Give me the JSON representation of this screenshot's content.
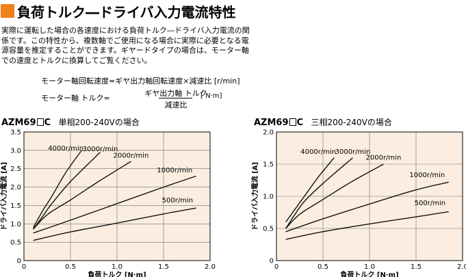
{
  "page": {
    "title": "負荷トルク―ドライバ入力電流特性",
    "description": "実際に運転した場合の各速度における負荷トルク―ドライバ入力電流の関係です。この特性から、複数軸でご使用になる場合に実際に必要となる電源容量を推定することができます。ギヤードタイプの場合は、モーター軸での速度とトルクに換算してご覧ください。",
    "formula1": "モーター軸回転速度=ギヤ出力軸回転速度×減速比 [r/min]",
    "formula2": {
      "label": "モーター軸 トルク=",
      "numerator": "ギヤ出力軸 トルク",
      "denominator": "減速比",
      "unit": "[ N·m]"
    },
    "accent_color": "#f07f1c",
    "plot_background": "#fbeee0"
  },
  "chart_data": [
    {
      "type": "line",
      "model_prefix": "AZM69",
      "model_suffix": "C",
      "title": "単相200-240Vの場合",
      "xlabel": "負荷トルク [N·m]",
      "ylabel": "ドライバ入力電流 [A]",
      "xlim": [
        0,
        2.0
      ],
      "ylim": [
        0,
        3.5
      ],
      "xticks": [
        "0",
        "0.5",
        "1.0",
        "1.5",
        "2.0"
      ],
      "xtick_values": [
        0,
        0.5,
        1.0,
        1.5,
        2.0
      ],
      "yticks": [
        "0",
        "0.5",
        "1.0",
        "1.5",
        "2.0",
        "2.5",
        "3.0",
        "3.5"
      ],
      "ytick_values": [
        0,
        0.5,
        1.0,
        1.5,
        2.0,
        2.5,
        3.0,
        3.5
      ],
      "grid": true,
      "series": [
        {
          "name": "4000r/min",
          "x": [
            0.1,
            0.2,
            0.3,
            0.45,
            0.62
          ],
          "y": [
            0.9,
            1.35,
            1.75,
            2.4,
            3.0
          ]
        },
        {
          "name": "3000r/min",
          "x": [
            0.1,
            0.2,
            0.3,
            0.5,
            0.82
          ],
          "y": [
            0.85,
            1.2,
            1.55,
            2.15,
            2.95
          ]
        },
        {
          "name": "2000r/min",
          "x": [
            0.1,
            0.25,
            0.5,
            0.8,
            1.15
          ],
          "y": [
            0.85,
            1.25,
            1.65,
            2.15,
            2.7
          ]
        },
        {
          "name": "1000r/min",
          "x": [
            0.1,
            0.5,
            1.0,
            1.5,
            1.85
          ],
          "y": [
            0.75,
            1.1,
            1.55,
            2.0,
            2.3
          ]
        },
        {
          "name": "500r/min",
          "x": [
            0.1,
            0.5,
            1.0,
            1.5,
            1.85
          ],
          "y": [
            0.55,
            0.78,
            1.02,
            1.27,
            1.43
          ]
        }
      ]
    },
    {
      "type": "line",
      "model_prefix": "AZM69",
      "model_suffix": "C",
      "title": "三相200-240Vの場合",
      "xlabel": "負荷トルク [N·m]",
      "ylabel": "ドライバ入力電流 [A]",
      "xlim": [
        0,
        2.0
      ],
      "ylim": [
        0,
        2.0
      ],
      "xticks": [
        "0",
        "0.5",
        "1.0",
        "1.5",
        "2.0"
      ],
      "xtick_values": [
        0,
        0.5,
        1.0,
        1.5,
        2.0
      ],
      "yticks": [
        "0",
        "0.5",
        "1.0",
        "1.5",
        "2.0"
      ],
      "ytick_values": [
        0,
        0.5,
        1.0,
        1.5,
        2.0
      ],
      "grid": true,
      "series": [
        {
          "name": "4000r/min",
          "x": [
            0.1,
            0.2,
            0.3,
            0.45,
            0.62
          ],
          "y": [
            0.6,
            0.8,
            1.0,
            1.3,
            1.6
          ]
        },
        {
          "name": "3000r/min",
          "x": [
            0.1,
            0.2,
            0.3,
            0.5,
            0.82
          ],
          "y": [
            0.5,
            0.72,
            0.92,
            1.2,
            1.6
          ]
        },
        {
          "name": "2000r/min",
          "x": [
            0.1,
            0.25,
            0.5,
            0.8,
            1.15
          ],
          "y": [
            0.5,
            0.72,
            0.95,
            1.22,
            1.5
          ]
        },
        {
          "name": "1000r/min",
          "x": [
            0.1,
            0.5,
            1.0,
            1.5,
            1.85
          ],
          "y": [
            0.45,
            0.65,
            0.88,
            1.1,
            1.22
          ]
        },
        {
          "name": "500r/min",
          "x": [
            0.1,
            0.5,
            1.0,
            1.5,
            1.85
          ],
          "y": [
            0.33,
            0.45,
            0.57,
            0.68,
            0.76
          ]
        }
      ]
    }
  ]
}
